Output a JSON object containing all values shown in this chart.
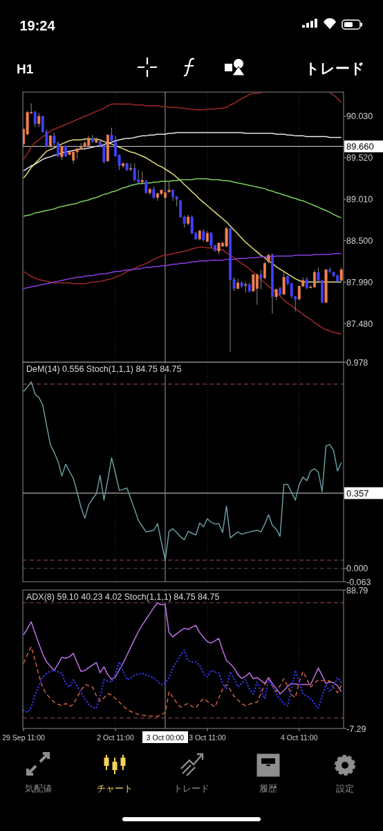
{
  "chart_data": [
    {
      "type": "other",
      "annotations": [
        "19:24",
        "H1",
        "トレード"
      ]
    },
    {
      "type": "candlestick",
      "categories": [
        "29 Sep 11:00",
        null,
        null,
        null,
        null,
        null,
        null,
        null,
        null,
        null,
        null,
        null,
        null,
        null,
        null,
        null,
        null,
        null,
        null,
        null,
        null,
        null,
        null,
        null,
        "2 Oct 11:00",
        null,
        null,
        null,
        null,
        null,
        null,
        null,
        null,
        null,
        null,
        null,
        null,
        "3 Oct 00:00",
        null,
        null,
        null,
        null,
        null,
        null,
        null,
        null,
        null,
        null,
        "3 Oct 11:00",
        null,
        null,
        null,
        null,
        null,
        null,
        null,
        null,
        null,
        null,
        null,
        null,
        null,
        null,
        null,
        null,
        null,
        null,
        null,
        null,
        null,
        null,
        null,
        "4 Oct 11:00",
        null,
        null,
        null,
        null,
        null,
        null,
        null,
        null,
        null,
        null,
        null
      ],
      "ohlc": [
        [
          89.69,
          89.88,
          89.67,
          89.87
        ],
        [
          89.81,
          90.1,
          89.8,
          90.08
        ],
        [
          90.07,
          90.19,
          90.06,
          90.08
        ],
        [
          90.08,
          90.1,
          89.9,
          89.94
        ],
        [
          89.94,
          90.07,
          89.9,
          90.03
        ],
        [
          90.03,
          90.04,
          89.83,
          89.84
        ],
        [
          89.84,
          89.87,
          89.64,
          89.66
        ],
        [
          89.66,
          89.8,
          89.64,
          89.79
        ],
        [
          89.79,
          89.83,
          89.67,
          89.7
        ],
        [
          89.7,
          89.72,
          89.53,
          89.54
        ],
        [
          89.53,
          89.67,
          89.49,
          89.66
        ],
        [
          89.66,
          89.67,
          89.53,
          89.54
        ],
        [
          89.56,
          89.6,
          89.55,
          89.59
        ],
        [
          89.49,
          89.6,
          89.45,
          89.59
        ],
        [
          89.59,
          89.64,
          89.51,
          89.63
        ],
        [
          89.63,
          89.7,
          89.63,
          89.65
        ],
        [
          89.66,
          89.74,
          89.64,
          89.7
        ],
        [
          89.67,
          89.79,
          89.67,
          89.76
        ],
        [
          89.76,
          89.8,
          89.7,
          89.72
        ],
        [
          89.71,
          89.77,
          89.7,
          89.74
        ],
        [
          89.72,
          89.74,
          89.66,
          89.67
        ],
        [
          89.67,
          89.69,
          89.45,
          89.47
        ],
        [
          89.48,
          89.81,
          89.47,
          89.8
        ],
        [
          89.8,
          89.89,
          89.72,
          89.73
        ],
        [
          89.72,
          89.79,
          89.53,
          89.54
        ],
        [
          89.55,
          89.56,
          89.37,
          89.42
        ],
        [
          89.42,
          89.46,
          89.39,
          89.45
        ],
        [
          89.45,
          89.46,
          89.36,
          89.37
        ],
        [
          89.38,
          89.45,
          89.35,
          89.39
        ],
        [
          89.39,
          89.45,
          89.23,
          89.25
        ],
        [
          89.25,
          89.37,
          89.2,
          89.22
        ],
        [
          89.22,
          89.35,
          89.2,
          89.24
        ],
        [
          89.23,
          89.25,
          89.08,
          89.09
        ],
        [
          89.09,
          89.15,
          89.06,
          89.13
        ],
        [
          89.13,
          89.17,
          89.02,
          89.03
        ],
        [
          89.03,
          89.09,
          88.99,
          89.08
        ],
        [
          89.08,
          89.13,
          89.06,
          89.12
        ],
        [
          89.03,
          89.1,
          89.02,
          89.09
        ],
        [
          89.1,
          89.22,
          89.09,
          89.12
        ],
        [
          89.12,
          89.13,
          88.99,
          89.04
        ],
        [
          89.04,
          89.05,
          88.92,
          89.01
        ],
        [
          88.99,
          89.0,
          88.78,
          88.79
        ],
        [
          88.79,
          88.81,
          88.66,
          88.71
        ],
        [
          88.71,
          88.82,
          88.69,
          88.79
        ],
        [
          88.79,
          88.81,
          88.58,
          88.59
        ],
        [
          88.59,
          88.61,
          88.51,
          88.52
        ],
        [
          88.52,
          88.63,
          88.5,
          88.62
        ],
        [
          88.61,
          88.64,
          88.49,
          88.51
        ],
        [
          88.49,
          88.62,
          88.48,
          88.59
        ],
        [
          88.59,
          88.61,
          88.41,
          88.44
        ],
        [
          88.44,
          88.45,
          88.36,
          88.38
        ],
        [
          88.37,
          88.48,
          88.33,
          88.47
        ],
        [
          88.43,
          88.49,
          88.42,
          88.47
        ],
        [
          88.43,
          88.67,
          88.42,
          88.65
        ],
        [
          88.65,
          88.66,
          87.13,
          88.02
        ],
        [
          88.02,
          88.05,
          87.88,
          87.91
        ],
        [
          87.91,
          88.03,
          87.9,
          87.98
        ],
        [
          87.98,
          88.0,
          87.92,
          87.94
        ],
        [
          87.95,
          87.99,
          87.86,
          87.96
        ],
        [
          87.96,
          87.98,
          87.86,
          87.88
        ],
        [
          87.88,
          88.09,
          87.87,
          88.08
        ],
        [
          87.91,
          88.1,
          87.71,
          88.08
        ],
        [
          88.08,
          88.14,
          87.9,
          88.04
        ],
        [
          88.04,
          88.24,
          88.03,
          88.22
        ],
        [
          88.24,
          88.34,
          88.22,
          88.32
        ],
        [
          88.33,
          88.34,
          87.6,
          87.81
        ],
        [
          87.81,
          87.91,
          87.77,
          87.9
        ],
        [
          87.91,
          87.93,
          87.82,
          87.84
        ],
        [
          87.84,
          88.11,
          87.83,
          88.05
        ],
        [
          88.06,
          88.07,
          87.95,
          87.97
        ],
        [
          87.97,
          87.98,
          87.79,
          87.82
        ],
        [
          87.81,
          87.82,
          87.63,
          87.78
        ],
        [
          87.78,
          87.95,
          87.77,
          87.94
        ],
        [
          87.94,
          88.05,
          87.93,
          88.01
        ],
        [
          88.02,
          88.05,
          87.9,
          87.92
        ],
        [
          87.92,
          87.95,
          87.91,
          87.93
        ],
        [
          87.93,
          88.14,
          87.92,
          88.11
        ],
        [
          88.11,
          88.17,
          87.99,
          88.01
        ],
        [
          88.01,
          88.02,
          87.73,
          87.74
        ],
        [
          87.74,
          88.15,
          87.73,
          88.14
        ],
        [
          88.14,
          88.17,
          88.1,
          88.12
        ],
        [
          88.11,
          88.12,
          88.05,
          88.07
        ],
        [
          88.07,
          88.08,
          87.98,
          88.0
        ],
        [
          88.01,
          88.17,
          88.0,
          88.14
        ]
      ],
      "colors": [
        "#f08050",
        "#f08050",
        "#f08050",
        "#4040ff",
        "#f08050",
        "#4040ff",
        "#4040ff",
        "#f08050",
        "#4040ff",
        "#4040ff",
        "#f08050",
        "#4040ff",
        "#f08050",
        "#f08050",
        "#f08050",
        "#f08050",
        "#f08050",
        "#f08050",
        "#4040ff",
        "#f08050",
        "#4040ff",
        "#4040ff",
        "#f08050",
        "#4040ff",
        "#4040ff",
        "#4040ff",
        "#f08050",
        "#4040ff",
        "#f08050",
        "#4040ff",
        "#4040ff",
        "#f08050",
        "#4040ff",
        "#f08050",
        "#4040ff",
        "#f08050",
        "#f08050",
        "#f08050",
        "#f08050",
        "#4040ff",
        "#4040ff",
        "#4040ff",
        "#4040ff",
        "#f08050",
        "#4040ff",
        "#4040ff",
        "#f08050",
        "#4040ff",
        "#f08050",
        "#4040ff",
        "#4040ff",
        "#f08050",
        "#f08050",
        "#f08050",
        "#4040ff",
        "#4040ff",
        "#f08050",
        "#4040ff",
        "#f08050",
        "#4040ff",
        "#f08050",
        "#f08050",
        "#4040ff",
        "#f08050",
        "#f08050",
        "#4040ff",
        "#f08050",
        "#4040ff",
        "#f08050",
        "#4040ff",
        "#4040ff",
        "#4040ff",
        "#f08050",
        "#f08050",
        "#4040ff",
        "#f08050",
        "#f08050",
        "#4040ff",
        "#4040ff",
        "#f08050",
        "#4040ff",
        "#4040ff",
        "#4040ff",
        "#f08050"
      ],
      "series": [
        {
          "type": "line",
          "color": "#a02828",
          "values": [
            89.5,
            89.57,
            89.65,
            89.71,
            89.74,
            89.78,
            89.81,
            89.85,
            89.87,
            89.89,
            89.91,
            89.93,
            89.95,
            89.97,
            89.99,
            90.01,
            90.03,
            90.05,
            90.07,
            90.09,
            90.11,
            90.13,
            90.16,
            90.18,
            90.18,
            90.18,
            90.18,
            90.18,
            90.18,
            90.17,
            90.17,
            90.17,
            90.16,
            90.16,
            90.16,
            90.16,
            90.15,
            90.15,
            90.14,
            90.14,
            90.14,
            90.13,
            90.13,
            90.12,
            90.12,
            90.11,
            90.11,
            90.11,
            90.12,
            90.12,
            90.12,
            90.13,
            90.13,
            90.14,
            90.17,
            90.19,
            90.22,
            90.25,
            90.27,
            90.3,
            90.31,
            90.31,
            90.32,
            null,
            null,
            null,
            null,
            null,
            null,
            null,
            null,
            null,
            null,
            null,
            null,
            null,
            null,
            null,
            null,
            null,
            90.32,
            90.29,
            90.25,
            90.2
          ]
        },
        {
          "type": "line",
          "color": "#a02828",
          "values": [
            88.12,
            88.09,
            88.06,
            88.04,
            88.02,
            88.01,
            88.0,
            87.99,
            87.98,
            87.98,
            87.98,
            87.98,
            87.98,
            87.97,
            87.97,
            87.97,
            87.97,
            87.98,
            87.99,
            87.99,
            88.0,
            88.01,
            88.02,
            88.03,
            88.05,
            88.07,
            88.09,
            88.12,
            88.14,
            88.16,
            88.18,
            88.2,
            88.22,
            88.24,
            88.27,
            88.29,
            88.31,
            88.32,
            88.33,
            88.34,
            88.35,
            88.36,
            88.37,
            88.38,
            88.4,
            88.41,
            88.42,
            88.42,
            88.41,
            88.41,
            88.4,
            88.39,
            88.39,
            88.35,
            88.32,
            88.29,
            88.25,
            88.22,
            88.19,
            88.15,
            88.11,
            88.07,
            88.02,
            87.98,
            87.94,
            87.9,
            87.86,
            87.82,
            87.77,
            87.73,
            87.7,
            87.66,
            87.63,
            87.59,
            87.56,
            87.53,
            87.49,
            87.46,
            87.43,
            87.4,
            87.39,
            87.37,
            87.36,
            87.35
          ]
        },
        {
          "type": "line",
          "color": "#e8e8e8",
          "values": [
            89.36,
            89.39,
            89.42,
            89.44,
            89.47,
            89.5,
            89.52,
            89.53,
            89.55,
            89.56,
            89.58,
            89.59,
            89.6,
            89.61,
            89.62,
            89.63,
            89.63,
            89.64,
            89.65,
            89.66,
            89.67,
            89.68,
            89.7,
            89.71,
            89.73,
            89.74,
            89.75,
            89.76,
            89.76,
            89.77,
            89.78,
            89.79,
            89.79,
            89.8,
            89.8,
            89.81,
            89.81,
            89.81,
            89.82,
            89.82,
            89.83,
            89.83,
            89.83,
            89.83,
            89.83,
            89.83,
            89.83,
            89.83,
            89.83,
            89.83,
            89.83,
            89.83,
            89.83,
            89.83,
            89.83,
            89.83,
            89.83,
            89.83,
            89.82,
            89.82,
            89.82,
            89.82,
            89.82,
            89.82,
            89.82,
            89.82,
            89.81,
            89.81,
            89.81,
            89.8,
            89.8,
            89.79,
            89.79,
            89.79,
            89.78,
            89.78,
            89.78,
            89.78,
            89.78,
            89.78,
            89.77,
            89.77,
            89.77,
            89.77
          ]
        },
        {
          "type": "line",
          "color": "#e6e07a",
          "values": [
            89.27,
            89.33,
            89.4,
            89.45,
            89.5,
            89.55,
            89.6,
            89.62,
            89.64,
            89.67,
            89.69,
            89.71,
            89.73,
            89.74,
            89.74,
            89.74,
            89.75,
            89.75,
            89.75,
            89.75,
            89.74,
            89.72,
            89.7,
            89.69,
            89.67,
            89.65,
            89.63,
            89.61,
            89.59,
            89.58,
            89.56,
            89.54,
            89.52,
            89.49,
            89.46,
            89.43,
            89.41,
            89.38,
            89.35,
            89.32,
            89.28,
            89.24,
            89.19,
            89.15,
            89.1,
            89.06,
            89.01,
            88.97,
            88.93,
            88.89,
            88.85,
            88.81,
            88.77,
            88.73,
            88.68,
            88.63,
            88.58,
            88.53,
            88.48,
            88.44,
            88.4,
            88.36,
            88.32,
            88.29,
            88.25,
            88.22,
            88.18,
            88.15,
            88.12,
            88.09,
            88.06,
            88.03,
            88.01,
            87.99,
            87.99,
            87.99,
            87.99,
            87.99,
            87.99,
            87.99,
            87.99,
            87.99,
            87.99,
            87.99
          ]
        },
        {
          "type": "line",
          "color": "#7cd35a",
          "values": [
            88.8,
            88.81,
            88.82,
            88.84,
            88.85,
            88.86,
            88.87,
            88.88,
            88.89,
            88.91,
            88.92,
            88.93,
            88.94,
            88.95,
            88.96,
            88.98,
            88.99,
            89.0,
            89.02,
            89.03,
            89.05,
            89.07,
            89.08,
            89.1,
            89.11,
            89.13,
            89.15,
            89.16,
            89.18,
            89.19,
            89.2,
            89.2,
            89.21,
            89.21,
            89.22,
            89.22,
            89.23,
            89.23,
            89.23,
            89.24,
            89.24,
            89.25,
            89.25,
            89.25,
            89.25,
            89.26,
            89.26,
            89.26,
            89.26,
            89.25,
            89.25,
            89.25,
            89.24,
            89.24,
            89.23,
            89.22,
            89.21,
            89.2,
            89.19,
            89.18,
            89.17,
            89.16,
            89.15,
            89.14,
            89.12,
            89.11,
            89.09,
            89.08,
            89.06,
            89.05,
            89.03,
            89.02,
            89.0,
            88.99,
            88.97,
            88.95,
            88.93,
            88.91,
            88.89,
            88.87,
            88.85,
            88.82,
            88.8,
            88.78
          ]
        },
        {
          "type": "line",
          "color": "#8a3ce0",
          "values": [
            87.91,
            87.92,
            87.93,
            87.94,
            87.95,
            87.96,
            87.97,
            87.98,
            87.99,
            88.0,
            88.01,
            88.02,
            88.03,
            88.04,
            88.05,
            88.05,
            88.06,
            88.07,
            88.07,
            88.08,
            88.09,
            88.09,
            88.1,
            88.11,
            88.12,
            88.12,
            88.13,
            88.14,
            88.14,
            88.15,
            88.15,
            88.16,
            88.17,
            88.17,
            88.18,
            88.18,
            88.19,
            88.19,
            88.2,
            88.21,
            88.21,
            88.22,
            88.22,
            88.23,
            88.24,
            88.24,
            88.25,
            88.25,
            88.25,
            88.26,
            88.26,
            88.26,
            88.26,
            88.27,
            88.27,
            88.27,
            88.28,
            88.28,
            88.28,
            88.29,
            88.29,
            88.29,
            88.3,
            88.3,
            88.3,
            88.3,
            88.31,
            88.31,
            88.31,
            88.31,
            88.31,
            88.32,
            88.32,
            88.32,
            88.32,
            88.32,
            88.33,
            88.33,
            88.33,
            88.33,
            88.33,
            88.34,
            88.34,
            88.34
          ]
        }
      ],
      "ylim": [
        87.004,
        90.328
      ],
      "yticks": [
        {
          "value": 90.03,
          "label": "90.030"
        },
        {
          "value": 89.52,
          "label": "89.520"
        },
        {
          "value": 89.01,
          "label": "89.010"
        },
        {
          "value": 88.5,
          "label": "88.500"
        },
        {
          "value": 87.99,
          "label": "87.990"
        },
        {
          "value": 87.48,
          "label": "87.480"
        }
      ],
      "tick_labels": "y",
      "grid": "x",
      "ref_lines": [
        {
          "axis": "y",
          "value": 89.66,
          "label": "89.660",
          "color": "#d8d8d8"
        },
        {
          "axis": "x",
          "value": "3 Oct 00:00",
          "color": "#a0a0a0"
        }
      ]
    },
    {
      "type": "line",
      "title": "DeM(14) 0.556 Stoch(1,1,1) 84.75 84.75",
      "categories": [
        "29 Sep 11:00",
        null,
        null,
        null,
        null,
        null,
        null,
        null,
        null,
        null,
        null,
        null,
        null,
        null,
        null,
        null,
        null,
        null,
        null,
        null,
        null,
        null,
        null,
        null,
        "2 Oct 11:00",
        null,
        null,
        null,
        null,
        null,
        null,
        null,
        null,
        null,
        null,
        null,
        null,
        "3 Oct 00:00",
        null,
        null,
        null,
        null,
        null,
        null,
        null,
        null,
        null,
        null,
        "3 Oct 11:00",
        null,
        null,
        null,
        null,
        null,
        null,
        null,
        null,
        null,
        null,
        null,
        null,
        null,
        null,
        null,
        null,
        null,
        null,
        null,
        null,
        null,
        null,
        null,
        "4 Oct 11:00",
        null,
        null,
        null,
        null,
        null,
        null,
        null,
        null,
        null,
        null,
        null
      ],
      "series": [
        {
          "color": "#6a9aa0",
          "values": [
            0.839,
            0.86,
            0.885,
            0.828,
            0.81,
            0.776,
            0.679,
            0.587,
            0.55,
            0.507,
            0.439,
            0.494,
            0.46,
            0.427,
            0.36,
            0.29,
            0.238,
            0.301,
            0.33,
            0.353,
            0.441,
            0.324,
            0.42,
            0.524,
            0.45,
            0.37,
            0.375,
            0.381,
            0.33,
            0.28,
            0.227,
            0.2,
            0.173,
            0.177,
            0.181,
            0.212,
            0.125,
            0.038,
            0.176,
            0.188,
            0.17,
            0.15,
            0.136,
            0.176,
            0.167,
            0.158,
            0.215,
            0.198,
            0.235,
            0.22,
            0.21,
            0.213,
            0.17,
            0.296,
            0.145,
            0.16,
            0.173,
            0.162,
            0.168,
            0.173,
            0.177,
            0.181,
            0.173,
            0.21,
            0.255,
            0.204,
            0.186,
            0.152,
            0.398,
            0.398,
            0.36,
            0.324,
            0.398,
            0.433,
            0.416,
            0.462,
            0.473,
            0.456,
            0.364,
            0.581,
            0.587,
            0.559,
            0.462,
            0.502
          ]
        }
      ],
      "ylim": [
        -0.063,
        0.978
      ],
      "yticks": [
        0.978,
        {
          "value": 0,
          "label": "0.000"
        },
        -0.063
      ],
      "tick_labels": "y",
      "grid": "x",
      "ref_lines": [
        {
          "axis": "y",
          "value": 0.357,
          "label": "0.357",
          "color": "#d8d8d8"
        },
        {
          "axis": "y",
          "value": 0.874,
          "color": "#a04a6a",
          "line_style": "dashed"
        },
        {
          "axis": "y",
          "value": 0.039,
          "color": "#a04a6a",
          "line_style": "dashed"
        },
        {
          "axis": "y",
          "value": 0,
          "color": "#505050",
          "line_style": "dashed"
        },
        {
          "axis": "x",
          "value": "3 Oct 00:00",
          "color": "#a0a0a0"
        }
      ]
    },
    {
      "type": "line",
      "title": "ADX(8) 59.10 40.23 4.02 Stoch(1,1,1) 84.75 84.75",
      "categories": [
        "29 Sep 11:00",
        null,
        null,
        null,
        null,
        null,
        null,
        null,
        null,
        null,
        null,
        null,
        null,
        null,
        null,
        null,
        null,
        null,
        null,
        null,
        null,
        null,
        null,
        null,
        "2 Oct 11:00",
        null,
        null,
        null,
        null,
        null,
        null,
        null,
        null,
        null,
        null,
        null,
        null,
        "3 Oct 00:00",
        null,
        null,
        null,
        null,
        null,
        null,
        null,
        null,
        null,
        null,
        "3 Oct 11:00",
        null,
        null,
        null,
        null,
        null,
        null,
        null,
        null,
        null,
        null,
        null,
        null,
        null,
        null,
        null,
        null,
        null,
        null,
        null,
        null,
        null,
        null,
        null,
        "4 Oct 11:00",
        null,
        null,
        null,
        null,
        null,
        null,
        null,
        null,
        null,
        null,
        null
      ],
      "series": [
        {
          "color": "#c070e8",
          "line_style": "solid",
          "values": [
            57.6,
            62.0,
            66.7,
            59.0,
            51.5,
            44.3,
            39.0,
            36.0,
            33.0,
            37.5,
            42.1,
            41.5,
            42.5,
            44.9,
            38.5,
            32.2,
            33.0,
            34.9,
            36.7,
            38.5,
            31.4,
            35.5,
            30.0,
            26.8,
            28.5,
            33.5,
            38.1,
            43.5,
            49.1,
            54.6,
            60.0,
            64.5,
            68.5,
            72.5,
            76.5,
            79.8,
            78.6,
            78.6,
            59.3,
            56.3,
            58.5,
            60.5,
            62.2,
            61.5,
            63.0,
            64.2,
            59.3,
            56.0,
            53.0,
            52.0,
            53.5,
            55.2,
            47.0,
            39.9,
            37.5,
            34.7,
            30.0,
            27.5,
            28.9,
            31.4,
            27.3,
            28.1,
            26.0,
            24.0,
            28.1,
            24.0,
            20.5,
            16.7,
            19.0,
            22.0,
            24.0,
            23.6,
            23.2,
            23.2,
            23.2,
            23.2,
            29.0,
            34.7,
            29.5,
            24.0,
            25.0,
            24.5,
            22.4,
            18.3
          ]
        },
        {
          "color": "#d06040",
          "line_style": "dashed",
          "values": [
            38.0,
            44.0,
            49.4,
            40.0,
            29.5,
            21.0,
            16.5,
            13.5,
            11.0,
            9.5,
            8.5,
            10.1,
            8.0,
            9.5,
            14.5,
            19.0,
            23.2,
            22.5,
            21.6,
            15.5,
            11.7,
            14.0,
            17.0,
            16.0,
            13.5,
            11.0,
            8.5,
            6.0,
            4.5,
            3.5,
            2.5,
            1.9,
            1.6,
            1.4,
            1.2,
            1.1,
            2.5,
            3.6,
            18.3,
            14.5,
            10.5,
            7.6,
            9.0,
            10.1,
            8.0,
            7.0,
            10.5,
            13.4,
            11.5,
            9.5,
            7.6,
            14.0,
            20.0,
            23.2,
            19.5,
            15.0,
            12.5,
            10.0,
            8.5,
            9.5,
            10.5,
            10.9,
            17.0,
            23.0,
            27.3,
            22.0,
            18.3,
            22.5,
            27.3,
            22.0,
            16.0,
            14.2,
            25.0,
            32.2,
            27.0,
            21.6,
            24.0,
            26.5,
            26.0,
            25.8,
            25.7,
            21.0,
            17.5,
            22.4
          ]
        },
        {
          "color": "#3030d0",
          "line_style": "dotted",
          "values": [
            5.2,
            4.0,
            7.5,
            16.0,
            22.5,
            28.5,
            31.0,
            32.5,
            33.0,
            32.0,
            31.0,
            24.0,
            21.5,
            26.5,
            22.0,
            18.0,
            13.5,
            9.5,
            7.5,
            6.8,
            15.0,
            26.5,
            25.5,
            24.9,
            31.5,
            39.0,
            32.5,
            26.5,
            28.0,
            29.8,
            30.5,
            31.0,
            30.0,
            29.0,
            28.0,
            25.5,
            23.2,
            24.5,
            28.0,
            34.7,
            39.0,
            43.5,
            47.0,
            39.6,
            39.0,
            38.8,
            36.5,
            31.0,
            28.5,
            33.0,
            32.0,
            31.0,
            24.0,
            19.9,
            32.2,
            27.0,
            21.6,
            24.0,
            26.5,
            20.0,
            16.7,
            24.9,
            19.0,
            13.4,
            26.5,
            23.0,
            16.7,
            13.0,
            10.0,
            8.5,
            20.0,
            33.0,
            25.0,
            16.7,
            15.0,
            13.4,
            10.0,
            6.8,
            15.0,
            23.2,
            18.3,
            22.0,
            28.0,
            24.9
          ]
        }
      ],
      "ylim": [
        -7.29,
        88.79
      ],
      "yticks": [
        88.79,
        -7.29
      ],
      "grid": "x",
      "ref_lines": [
        {
          "axis": "y",
          "value": 80,
          "color": "#a04a6a",
          "line_style": "dashed"
        },
        {
          "axis": "y",
          "value": 0,
          "color": "#a04a6a",
          "line_style": "dashed"
        },
        {
          "axis": "x",
          "value": "3 Oct 00:00",
          "color": "#a0a0a0"
        }
      ]
    },
    {
      "type": "other",
      "annotations": [
        "気配値",
        "チャート",
        "トレード",
        "履歴",
        "設定"
      ]
    }
  ]
}
